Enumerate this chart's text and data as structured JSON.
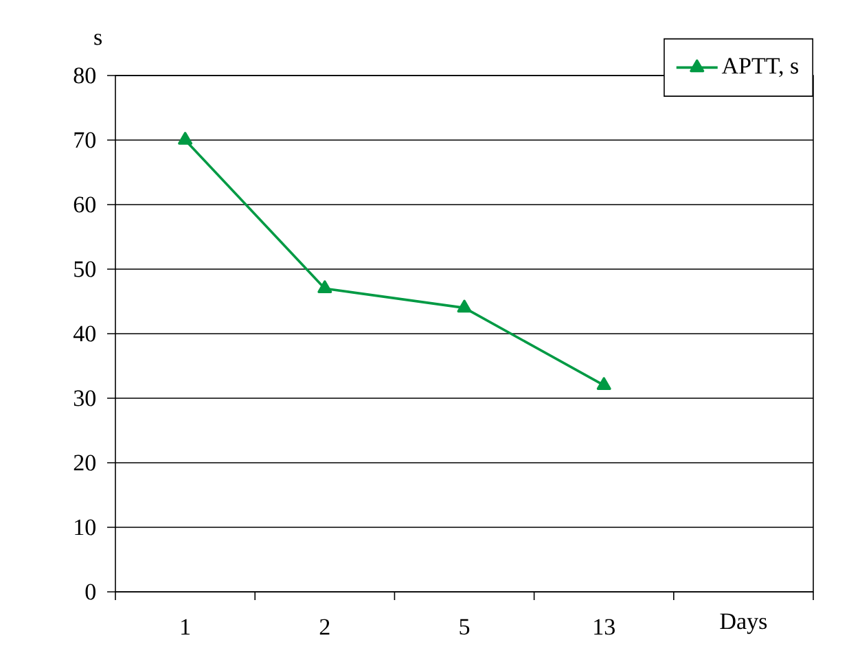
{
  "chart_data": {
    "type": "line",
    "ylabel": "s",
    "xlabel": "Days",
    "categories": [
      "1",
      "2",
      "5",
      "13"
    ],
    "series": [
      {
        "name": "APTT, s",
        "color": "#009a44",
        "values": [
          70,
          47,
          44,
          32
        ]
      }
    ],
    "ylim": [
      0,
      80
    ],
    "yticks": [
      0,
      10,
      20,
      30,
      40,
      50,
      60,
      70,
      80
    ],
    "grid": "y",
    "legend": "top right",
    "marker": "triangle",
    "line_style": "solid"
  }
}
